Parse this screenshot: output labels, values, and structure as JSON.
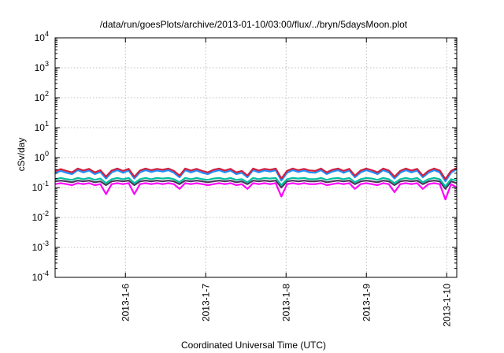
{
  "chart_data": {
    "type": "line",
    "title": "/data/run/goesPlots/archive/2013-01-10/03:00/flux/../bryn/5daysMoon.plot",
    "xlabel": "Coordinated Universal Time (UTC)",
    "ylabel": "cSv/day",
    "yscale": "log",
    "ylim": [
      0.0001,
      10000
    ],
    "y_ticks": [
      {
        "base": "10",
        "exp": "-4"
      },
      {
        "base": "10",
        "exp": "-3"
      },
      {
        "base": "10",
        "exp": "-2"
      },
      {
        "base": "10",
        "exp": "-1"
      },
      {
        "base": "10",
        "exp": "0"
      },
      {
        "base": "10",
        "exp": "1"
      },
      {
        "base": "10",
        "exp": "2"
      },
      {
        "base": "10",
        "exp": "3"
      },
      {
        "base": "10",
        "exp": "4"
      }
    ],
    "xlim": [
      "2013-01-05T03:00",
      "2013-01-10T03:00"
    ],
    "x_ticks": [
      "2013-1-6",
      "2013-1-7",
      "2013-1-8",
      "2013-1-9",
      "2013-1-10"
    ],
    "grid": true,
    "series": [
      {
        "color": "#ff00ff",
        "values": [
          0.13,
          0.14,
          0.13,
          0.12,
          0.14,
          0.13,
          0.14,
          0.12,
          0.13,
          0.06,
          0.13,
          0.14,
          0.13,
          0.14,
          0.06,
          0.13,
          0.14,
          0.13,
          0.14,
          0.13,
          0.14,
          0.13,
          0.09,
          0.14,
          0.13,
          0.14,
          0.13,
          0.12,
          0.13,
          0.14,
          0.13,
          0.14,
          0.12,
          0.13,
          0.09,
          0.14,
          0.13,
          0.14,
          0.13,
          0.14,
          0.05,
          0.13,
          0.14,
          0.13,
          0.14,
          0.13,
          0.13,
          0.14,
          0.12,
          0.13,
          0.14,
          0.13,
          0.14,
          0.09,
          0.13,
          0.14,
          0.13,
          0.12,
          0.14,
          0.13,
          0.07,
          0.13,
          0.14,
          0.13,
          0.14,
          0.09,
          0.13,
          0.14,
          0.13,
          0.04,
          0.13,
          0.1
        ]
      },
      {
        "color": "#4a3a5a",
        "values": [
          0.16,
          0.17,
          0.16,
          0.15,
          0.17,
          0.16,
          0.17,
          0.15,
          0.16,
          0.12,
          0.16,
          0.17,
          0.16,
          0.17,
          0.12,
          0.16,
          0.17,
          0.16,
          0.17,
          0.16,
          0.17,
          0.16,
          0.13,
          0.17,
          0.16,
          0.17,
          0.16,
          0.15,
          0.16,
          0.17,
          0.16,
          0.17,
          0.15,
          0.16,
          0.13,
          0.17,
          0.16,
          0.17,
          0.16,
          0.17,
          0.1,
          0.16,
          0.17,
          0.16,
          0.17,
          0.16,
          0.16,
          0.17,
          0.15,
          0.16,
          0.17,
          0.16,
          0.17,
          0.13,
          0.16,
          0.17,
          0.16,
          0.15,
          0.17,
          0.16,
          0.12,
          0.16,
          0.17,
          0.16,
          0.17,
          0.13,
          0.16,
          0.17,
          0.16,
          0.09,
          0.16,
          0.14
        ]
      },
      {
        "color": "#00c0a0",
        "values": [
          0.19,
          0.21,
          0.19,
          0.18,
          0.21,
          0.19,
          0.21,
          0.18,
          0.2,
          0.14,
          0.19,
          0.21,
          0.19,
          0.21,
          0.14,
          0.19,
          0.21,
          0.19,
          0.21,
          0.2,
          0.21,
          0.19,
          0.15,
          0.21,
          0.19,
          0.21,
          0.19,
          0.18,
          0.2,
          0.21,
          0.19,
          0.21,
          0.18,
          0.19,
          0.15,
          0.21,
          0.19,
          0.21,
          0.2,
          0.21,
          0.12,
          0.19,
          0.21,
          0.2,
          0.21,
          0.19,
          0.19,
          0.21,
          0.18,
          0.2,
          0.21,
          0.19,
          0.21,
          0.15,
          0.19,
          0.21,
          0.2,
          0.18,
          0.21,
          0.19,
          0.14,
          0.19,
          0.21,
          0.19,
          0.21,
          0.15,
          0.19,
          0.21,
          0.19,
          0.11,
          0.19,
          0.17
        ]
      },
      {
        "color": "#1e90ff",
        "values": [
          0.3,
          0.36,
          0.31,
          0.28,
          0.38,
          0.32,
          0.37,
          0.28,
          0.33,
          0.2,
          0.32,
          0.38,
          0.31,
          0.37,
          0.2,
          0.32,
          0.38,
          0.33,
          0.37,
          0.34,
          0.38,
          0.31,
          0.22,
          0.38,
          0.32,
          0.37,
          0.31,
          0.28,
          0.34,
          0.38,
          0.32,
          0.37,
          0.28,
          0.31,
          0.22,
          0.38,
          0.32,
          0.37,
          0.34,
          0.38,
          0.17,
          0.31,
          0.38,
          0.33,
          0.37,
          0.32,
          0.31,
          0.38,
          0.28,
          0.34,
          0.38,
          0.31,
          0.37,
          0.22,
          0.32,
          0.38,
          0.33,
          0.28,
          0.38,
          0.32,
          0.2,
          0.31,
          0.38,
          0.32,
          0.37,
          0.22,
          0.31,
          0.38,
          0.32,
          0.16,
          0.31,
          0.42
        ]
      },
      {
        "color": "#d02040",
        "values": [
          0.35,
          0.41,
          0.36,
          0.32,
          0.43,
          0.37,
          0.42,
          0.32,
          0.38,
          0.23,
          0.37,
          0.43,
          0.36,
          0.42,
          0.23,
          0.37,
          0.43,
          0.38,
          0.42,
          0.39,
          0.43,
          0.36,
          0.25,
          0.43,
          0.37,
          0.42,
          0.36,
          0.32,
          0.39,
          0.43,
          0.37,
          0.42,
          0.32,
          0.36,
          0.25,
          0.43,
          0.37,
          0.42,
          0.39,
          0.43,
          0.2,
          0.36,
          0.43,
          0.38,
          0.42,
          0.37,
          0.36,
          0.43,
          0.32,
          0.39,
          0.43,
          0.36,
          0.42,
          0.25,
          0.37,
          0.43,
          0.38,
          0.32,
          0.43,
          0.37,
          0.23,
          0.36,
          0.43,
          0.37,
          0.42,
          0.25,
          0.36,
          0.43,
          0.37,
          0.19,
          0.36,
          0.45
        ]
      }
    ]
  }
}
